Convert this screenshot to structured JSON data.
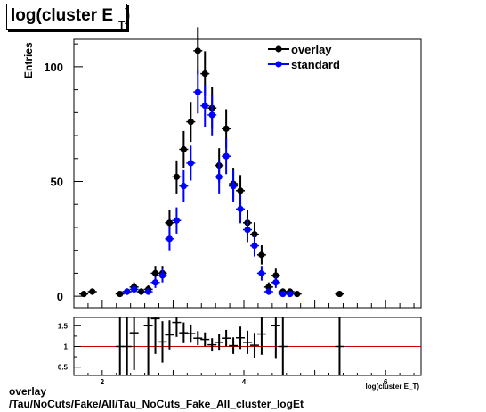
{
  "title": "log(cluster E",
  "title_sub": "T",
  "title_close": ")",
  "footer_line1": "overlay",
  "footer_line2": "/Tau/NoCuts/Fake/All/Tau_NoCuts_Fake_All_cluster_logEt",
  "colors": {
    "overlay": "#000000",
    "standard": "#0000ff",
    "ratio_line": "#cc0000"
  },
  "chart_data": [
    {
      "type": "scatter",
      "title": "log(cluster E_T)",
      "ylabel": "Entries",
      "xlabel": "",
      "xlim": [
        1.6,
        6.5
      ],
      "ylim": [
        -5,
        112
      ],
      "y_ticks": [
        0,
        50,
        100
      ],
      "legend": "top-right",
      "grid": false,
      "series": [
        {
          "name": "overlay",
          "color": "#000000",
          "points": [
            {
              "x": 1.74,
              "y": 1,
              "err": 1
            },
            {
              "x": 1.86,
              "y": 2,
              "err": 1.4
            },
            {
              "x": 2.25,
              "y": 1,
              "err": 1
            },
            {
              "x": 2.35,
              "y": 2,
              "err": 1.4
            },
            {
              "x": 2.45,
              "y": 4,
              "err": 2
            },
            {
              "x": 2.55,
              "y": 2,
              "err": 1.4
            },
            {
              "x": 2.65,
              "y": 3,
              "err": 1.7
            },
            {
              "x": 2.75,
              "y": 10,
              "err": 3.2
            },
            {
              "x": 2.85,
              "y": 10,
              "err": 3.2
            },
            {
              "x": 2.95,
              "y": 32,
              "err": 5.7
            },
            {
              "x": 3.05,
              "y": 52,
              "err": 7.2
            },
            {
              "x": 3.15,
              "y": 64,
              "err": 8
            },
            {
              "x": 3.25,
              "y": 76,
              "err": 8.7
            },
            {
              "x": 3.35,
              "y": 107,
              "err": 10.3
            },
            {
              "x": 3.45,
              "y": 97,
              "err": 9.8
            },
            {
              "x": 3.55,
              "y": 82,
              "err": 9.1
            },
            {
              "x": 3.65,
              "y": 57,
              "err": 7.5
            },
            {
              "x": 3.75,
              "y": 73,
              "err": 8.5
            },
            {
              "x": 3.85,
              "y": 49,
              "err": 7
            },
            {
              "x": 3.95,
              "y": 46,
              "err": 6.8
            },
            {
              "x": 4.05,
              "y": 32,
              "err": 5.7
            },
            {
              "x": 4.15,
              "y": 27,
              "err": 5.2
            },
            {
              "x": 4.25,
              "y": 18,
              "err": 4.2
            },
            {
              "x": 4.35,
              "y": 4,
              "err": 2
            },
            {
              "x": 4.45,
              "y": 9,
              "err": 3
            },
            {
              "x": 4.55,
              "y": 2,
              "err": 1.4
            },
            {
              "x": 4.65,
              "y": 2,
              "err": 1.4
            },
            {
              "x": 4.75,
              "y": 1,
              "err": 1
            },
            {
              "x": 5.35,
              "y": 1,
              "err": 1
            }
          ]
        },
        {
          "name": "standard",
          "color": "#0000ff",
          "points": [
            {
              "x": 2.35,
              "y": 2,
              "err": 1.4
            },
            {
              "x": 2.45,
              "y": 3,
              "err": 1.7
            },
            {
              "x": 2.65,
              "y": 2,
              "err": 1.4
            },
            {
              "x": 2.75,
              "y": 6,
              "err": 2.4
            },
            {
              "x": 2.85,
              "y": 9,
              "err": 3
            },
            {
              "x": 2.95,
              "y": 25,
              "err": 5
            },
            {
              "x": 3.05,
              "y": 33,
              "err": 5.7
            },
            {
              "x": 3.15,
              "y": 48,
              "err": 6.9
            },
            {
              "x": 3.25,
              "y": 58,
              "err": 7.6
            },
            {
              "x": 3.35,
              "y": 89,
              "err": 9.4
            },
            {
              "x": 3.45,
              "y": 83,
              "err": 9.1
            },
            {
              "x": 3.55,
              "y": 79,
              "err": 8.9
            },
            {
              "x": 3.65,
              "y": 52,
              "err": 7.2
            },
            {
              "x": 3.75,
              "y": 61,
              "err": 7.8
            },
            {
              "x": 3.85,
              "y": 48,
              "err": 6.9
            },
            {
              "x": 3.95,
              "y": 38,
              "err": 6.2
            },
            {
              "x": 4.05,
              "y": 29,
              "err": 5.4
            },
            {
              "x": 4.15,
              "y": 22,
              "err": 4.7
            },
            {
              "x": 4.25,
              "y": 10,
              "err": 3.2
            },
            {
              "x": 4.35,
              "y": 2,
              "err": 1.4
            },
            {
              "x": 4.45,
              "y": 6,
              "err": 2.4
            },
            {
              "x": 4.55,
              "y": 1,
              "err": 1
            },
            {
              "x": 4.65,
              "y": 1,
              "err": 1
            }
          ]
        }
      ]
    },
    {
      "type": "scatter",
      "title": "",
      "xlabel": "log(cluster E_T)",
      "ylabel": "",
      "xlim": [
        1.6,
        6.5
      ],
      "ylim": [
        0.3,
        1.7
      ],
      "x_ticks": [
        2,
        4,
        6
      ],
      "y_ticks": [
        0.5,
        1,
        1.5
      ],
      "reference_line": 1,
      "series": [
        {
          "name": "ratio",
          "points": [
            {
              "x": 2.25,
              "y": 1.0,
              "err": 1.4
            },
            {
              "x": 2.35,
              "y": 1.0,
              "err": 1.4
            },
            {
              "x": 2.45,
              "y": 1.33,
              "err": 0.9
            },
            {
              "x": 2.65,
              "y": 1.5,
              "err": 1.2
            },
            {
              "x": 2.75,
              "y": 1.67,
              "err": 0.85
            },
            {
              "x": 2.85,
              "y": 1.11,
              "err": 0.5
            },
            {
              "x": 2.95,
              "y": 1.28,
              "err": 0.35
            },
            {
              "x": 3.05,
              "y": 1.58,
              "err": 0.35
            },
            {
              "x": 3.15,
              "y": 1.33,
              "err": 0.25
            },
            {
              "x": 3.25,
              "y": 1.31,
              "err": 0.22
            },
            {
              "x": 3.35,
              "y": 1.2,
              "err": 0.17
            },
            {
              "x": 3.45,
              "y": 1.17,
              "err": 0.17
            },
            {
              "x": 3.55,
              "y": 1.04,
              "err": 0.16
            },
            {
              "x": 3.65,
              "y": 1.1,
              "err": 0.2
            },
            {
              "x": 3.75,
              "y": 1.2,
              "err": 0.2
            },
            {
              "x": 3.85,
              "y": 1.02,
              "err": 0.2
            },
            {
              "x": 3.95,
              "y": 1.21,
              "err": 0.27
            },
            {
              "x": 4.05,
              "y": 1.1,
              "err": 0.28
            },
            {
              "x": 4.15,
              "y": 1.03,
              "err": 0.3
            },
            {
              "x": 4.25,
              "y": 1.3,
              "err": 0.5
            },
            {
              "x": 4.45,
              "y": 1.5,
              "err": 0.8
            },
            {
              "x": 4.55,
              "y": 1.0,
              "err": 1.4
            },
            {
              "x": 5.35,
              "y": 1.0,
              "err": 1.4
            }
          ]
        }
      ]
    }
  ]
}
